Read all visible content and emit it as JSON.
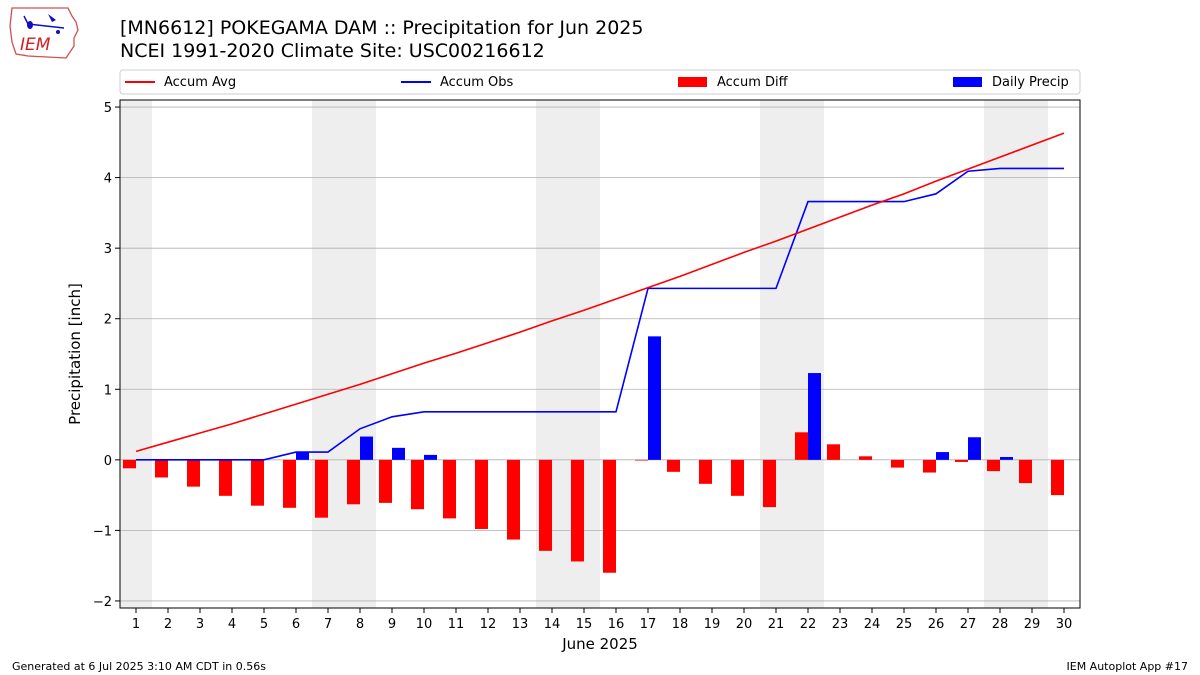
{
  "header": {
    "title_line1": "[MN6612] POKEGAMA DAM :: Precipitation for Jun 2025",
    "title_line2": "NCEI 1991-2020 Climate Site: USC00216612",
    "logo_text": "IEM"
  },
  "footer": {
    "left": "Generated at 6 Jul 2025 3:10 AM CDT in 0.56s",
    "right": "IEM Autoplot App #17"
  },
  "colors": {
    "accum_avg": "#ff0000",
    "accum_obs": "#0000ff",
    "accum_diff": "#ff0000",
    "daily_precip": "#0000ff",
    "weekend_shade": "#eeeeee",
    "grid": "#b0b0b0"
  },
  "chart_data": {
    "type": "bar",
    "title": "[MN6612] POKEGAMA DAM :: Precipitation for Jun 2025",
    "xlabel": "June 2025",
    "ylabel": "Precipitation [inch]",
    "ylim": [
      -2.1,
      5.1
    ],
    "yticks": [
      -2,
      -1,
      0,
      1,
      2,
      3,
      4,
      5
    ],
    "ytick_labels": [
      "−2",
      "−1",
      "0",
      "1",
      "2",
      "3",
      "4",
      "5"
    ],
    "grid": true,
    "legend_position": "top",
    "days": [
      1,
      2,
      3,
      4,
      5,
      6,
      7,
      8,
      9,
      10,
      11,
      12,
      13,
      14,
      15,
      16,
      17,
      18,
      19,
      20,
      21,
      22,
      23,
      24,
      25,
      26,
      27,
      28,
      29,
      30
    ],
    "weekend_days": [
      1,
      7,
      8,
      14,
      15,
      21,
      22,
      28,
      29
    ],
    "series": [
      {
        "name": "Accum Avg",
        "kind": "line",
        "values": [
          0.12,
          0.25,
          0.38,
          0.51,
          0.65,
          0.79,
          0.93,
          1.07,
          1.22,
          1.37,
          1.51,
          1.66,
          1.81,
          1.97,
          2.12,
          2.28,
          2.44,
          2.6,
          2.77,
          2.94,
          3.1,
          3.27,
          3.44,
          3.61,
          3.77,
          3.95,
          4.12,
          4.29,
          4.46,
          4.63
        ]
      },
      {
        "name": "Accum Obs",
        "kind": "line",
        "values": [
          0.0,
          0.0,
          0.0,
          0.0,
          0.0,
          0.11,
          0.11,
          0.44,
          0.61,
          0.68,
          0.68,
          0.68,
          0.68,
          0.68,
          0.68,
          0.68,
          2.43,
          2.43,
          2.43,
          2.43,
          2.43,
          3.66,
          3.66,
          3.66,
          3.66,
          3.77,
          4.09,
          4.13,
          4.13,
          4.13
        ]
      },
      {
        "name": "Accum Diff",
        "kind": "bar",
        "values": [
          -0.12,
          -0.25,
          -0.38,
          -0.51,
          -0.65,
          -0.68,
          -0.82,
          -0.63,
          -0.61,
          -0.7,
          -0.83,
          -0.98,
          -1.13,
          -1.29,
          -1.44,
          -1.6,
          -0.01,
          -0.17,
          -0.34,
          -0.51,
          -0.67,
          0.39,
          0.22,
          0.05,
          -0.11,
          -0.18,
          -0.03,
          -0.16,
          -0.33,
          -0.5
        ]
      },
      {
        "name": "Daily Precip",
        "kind": "bar",
        "values": [
          0.0,
          0.0,
          0.0,
          0.0,
          0.0,
          0.11,
          0.0,
          0.33,
          0.17,
          0.07,
          0.0,
          0.0,
          0.0,
          0.0,
          0.0,
          0.0,
          1.75,
          0.0,
          0.0,
          0.0,
          0.0,
          1.23,
          0.0,
          0.0,
          0.0,
          0.11,
          0.32,
          0.04,
          0.0,
          0.0
        ]
      }
    ]
  }
}
